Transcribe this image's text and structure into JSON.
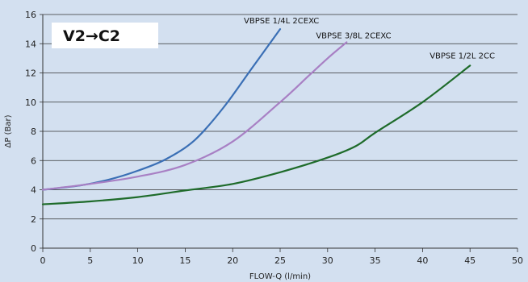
{
  "chart_data": {
    "type": "line",
    "title": "V2→C2",
    "xlabel": "FLOW-Q (l/min)",
    "ylabel": "ΔP (Bar)",
    "xlim": [
      0,
      50
    ],
    "ylim": [
      0,
      16
    ],
    "xticks": [
      "0",
      "5",
      "10",
      "15",
      "20",
      "25",
      "30",
      "35",
      "40",
      "45",
      "50"
    ],
    "yticks": [
      "0",
      "2",
      "4",
      "6",
      "8",
      "10",
      "12",
      "14",
      "16"
    ],
    "grid": "horizontal",
    "series": [
      {
        "name": "VBPSE 1/4L 2CEXC",
        "color": "#3a6fb5",
        "points": [
          [
            0,
            4.0
          ],
          [
            4,
            4.3
          ],
          [
            7,
            4.7
          ],
          [
            10,
            5.3
          ],
          [
            13,
            6.1
          ],
          [
            16,
            7.4
          ],
          [
            19,
            9.6
          ],
          [
            22,
            12.3
          ],
          [
            25,
            15.0
          ]
        ]
      },
      {
        "name": "VBPSE 3/8L 2CEXC",
        "color": "#a880c4",
        "points": [
          [
            0,
            4.0
          ],
          [
            5,
            4.4
          ],
          [
            10,
            4.9
          ],
          [
            15,
            5.7
          ],
          [
            20,
            7.3
          ],
          [
            25,
            10.0
          ],
          [
            28,
            11.8
          ],
          [
            30,
            13.0
          ],
          [
            32,
            14.1
          ]
        ]
      },
      {
        "name": "VBPSE 1/2L 2CC",
        "color": "#1e6b2a",
        "points": [
          [
            0,
            3.0
          ],
          [
            5,
            3.2
          ],
          [
            10,
            3.5
          ],
          [
            15,
            3.95
          ],
          [
            20,
            4.4
          ],
          [
            25,
            5.2
          ],
          [
            30,
            6.2
          ],
          [
            33,
            7.0
          ],
          [
            35,
            7.9
          ],
          [
            40,
            10.0
          ],
          [
            45,
            12.5
          ]
        ]
      }
    ]
  }
}
